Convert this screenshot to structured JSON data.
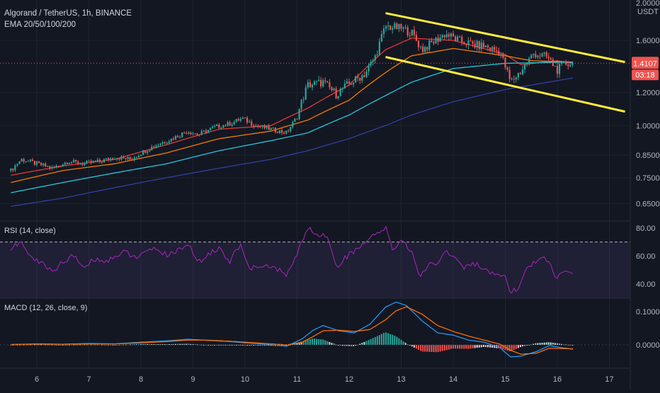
{
  "header": {
    "symbol": "Algorand / TetherUS, 1h, BINANCE",
    "indicator": "EMA 20/50/100/200"
  },
  "price_axis": {
    "currency": "USDT",
    "top_label": "2.0000",
    "current_price": "1.4107",
    "countdown": "03:18"
  },
  "colors": {
    "background": "#131722",
    "up": "#26a69a",
    "down": "#ef5350",
    "trend": "#ffeb3b",
    "ema20": "#e53935",
    "ema50": "#f57c00",
    "ema100": "#26c6da",
    "ema200": "#303f9f",
    "rsi": "#9c27b0",
    "macd": "#2196f3",
    "signal": "#ff6d00"
  },
  "chart_data": [
    {
      "type": "candlestick",
      "title": "Algorand / TetherUS, 1h, BINANCE",
      "x_ticks": [
        "6",
        "7",
        "8",
        "9",
        "10",
        "11",
        "12",
        "13",
        "14",
        "15",
        "16",
        "17"
      ],
      "y_ticks": [
        "0.6500",
        "0.7500",
        "0.8500",
        "1.0000",
        "1.2000",
        "1.6000"
      ],
      "y_scale": "log",
      "ylim": [
        0.6,
        2.0
      ],
      "close_path": [
        [
          5.5,
          0.78
        ],
        [
          5.7,
          0.83
        ],
        [
          6.0,
          0.81
        ],
        [
          6.3,
          0.79
        ],
        [
          6.6,
          0.82
        ],
        [
          6.9,
          0.81
        ],
        [
          7.2,
          0.82
        ],
        [
          7.5,
          0.84
        ],
        [
          7.8,
          0.83
        ],
        [
          8.0,
          0.86
        ],
        [
          8.3,
          0.9
        ],
        [
          8.6,
          0.93
        ],
        [
          8.9,
          0.97
        ],
        [
          9.1,
          0.95
        ],
        [
          9.4,
          0.99
        ],
        [
          9.7,
          1.01
        ],
        [
          9.95,
          1.04
        ],
        [
          10.2,
          1.0
        ],
        [
          10.5,
          0.98
        ],
        [
          10.8,
          0.96
        ],
        [
          11.0,
          1.05
        ],
        [
          11.2,
          1.25
        ],
        [
          11.5,
          1.27
        ],
        [
          11.75,
          1.19
        ],
        [
          12.0,
          1.26
        ],
        [
          12.3,
          1.33
        ],
        [
          12.5,
          1.46
        ],
        [
          12.7,
          1.73
        ],
        [
          13.0,
          1.71
        ],
        [
          13.2,
          1.67
        ],
        [
          13.4,
          1.52
        ],
        [
          13.6,
          1.58
        ],
        [
          13.85,
          1.66
        ],
        [
          14.1,
          1.6
        ],
        [
          14.4,
          1.56
        ],
        [
          14.6,
          1.55
        ],
        [
          14.9,
          1.5
        ],
        [
          15.1,
          1.27
        ],
        [
          15.3,
          1.35
        ],
        [
          15.55,
          1.49
        ],
        [
          15.8,
          1.46
        ],
        [
          16.0,
          1.36
        ],
        [
          16.15,
          1.41
        ],
        [
          16.3,
          1.41
        ]
      ],
      "series": [
        {
          "name": "EMA 20",
          "values": [
            [
              5.5,
              0.76
            ],
            [
              6.5,
              0.8
            ],
            [
              7.5,
              0.83
            ],
            [
              8.5,
              0.9
            ],
            [
              9.5,
              0.98
            ],
            [
              10.5,
              1.0
            ],
            [
              11.2,
              1.1
            ],
            [
              12.0,
              1.25
            ],
            [
              12.7,
              1.52
            ],
            [
              13.2,
              1.62
            ],
            [
              14.0,
              1.6
            ],
            [
              15.0,
              1.48
            ],
            [
              15.3,
              1.4
            ],
            [
              16.0,
              1.43
            ],
            [
              16.3,
              1.41
            ]
          ]
        },
        {
          "name": "EMA 50",
          "values": [
            [
              5.5,
              0.73
            ],
            [
              6.5,
              0.78
            ],
            [
              7.5,
              0.81
            ],
            [
              8.5,
              0.86
            ],
            [
              9.5,
              0.93
            ],
            [
              10.5,
              0.97
            ],
            [
              11.2,
              1.03
            ],
            [
              12.0,
              1.15
            ],
            [
              12.7,
              1.34
            ],
            [
              13.2,
              1.47
            ],
            [
              14.0,
              1.53
            ],
            [
              15.0,
              1.47
            ],
            [
              15.5,
              1.43
            ],
            [
              16.3,
              1.42
            ]
          ]
        },
        {
          "name": "EMA 100",
          "values": [
            [
              5.5,
              0.69
            ],
            [
              6.5,
              0.73
            ],
            [
              7.5,
              0.77
            ],
            [
              8.5,
              0.81
            ],
            [
              9.5,
              0.87
            ],
            [
              10.5,
              0.92
            ],
            [
              11.2,
              0.96
            ],
            [
              12.0,
              1.06
            ],
            [
              12.7,
              1.18
            ],
            [
              13.2,
              1.27
            ],
            [
              14.0,
              1.37
            ],
            [
              15.0,
              1.41
            ],
            [
              16.3,
              1.42
            ]
          ]
        },
        {
          "name": "EMA 200",
          "values": [
            [
              5.5,
              0.64
            ],
            [
              6.5,
              0.67
            ],
            [
              7.5,
              0.71
            ],
            [
              8.5,
              0.75
            ],
            [
              9.5,
              0.79
            ],
            [
              10.5,
              0.83
            ],
            [
              11.2,
              0.87
            ],
            [
              12.0,
              0.93
            ],
            [
              12.7,
              1.0
            ],
            [
              13.2,
              1.06
            ],
            [
              14.0,
              1.14
            ],
            [
              15.0,
              1.22
            ],
            [
              16.3,
              1.3
            ]
          ]
        }
      ],
      "trend_lines": [
        [
          [
            12.7,
            1.86
          ],
          [
            17.3,
            1.42
          ]
        ],
        [
          [
            12.7,
            1.46
          ],
          [
            17.3,
            1.08
          ]
        ]
      ],
      "last_price": 1.4107
    },
    {
      "type": "line",
      "title": "RSI (14, close)",
      "y_ticks": [
        "40.00",
        "60.00",
        "80.00"
      ],
      "ylim": [
        30,
        85
      ],
      "bands": [
        70,
        30
      ],
      "series": [
        {
          "name": "RSI",
          "values": [
            [
              5.5,
              65
            ],
            [
              5.7,
              70
            ],
            [
              5.9,
              58
            ],
            [
              6.1,
              55
            ],
            [
              6.3,
              49
            ],
            [
              6.5,
              56
            ],
            [
              6.7,
              60
            ],
            [
              6.9,
              52
            ],
            [
              7.1,
              58
            ],
            [
              7.3,
              56
            ],
            [
              7.5,
              60
            ],
            [
              7.7,
              63
            ],
            [
              7.9,
              59
            ],
            [
              8.1,
              62
            ],
            [
              8.3,
              66
            ],
            [
              8.5,
              60
            ],
            [
              8.7,
              64
            ],
            [
              8.9,
              69
            ],
            [
              9.1,
              55
            ],
            [
              9.3,
              62
            ],
            [
              9.5,
              65
            ],
            [
              9.7,
              56
            ],
            [
              9.9,
              68
            ],
            [
              10.1,
              50
            ],
            [
              10.3,
              54
            ],
            [
              10.5,
              52
            ],
            [
              10.7,
              49
            ],
            [
              10.8,
              46
            ],
            [
              10.95,
              57
            ],
            [
              11.1,
              71
            ],
            [
              11.2,
              80
            ],
            [
              11.4,
              75
            ],
            [
              11.6,
              74
            ],
            [
              11.75,
              52
            ],
            [
              11.9,
              58
            ],
            [
              12.1,
              64
            ],
            [
              12.3,
              69
            ],
            [
              12.5,
              75
            ],
            [
              12.7,
              80
            ],
            [
              12.85,
              64
            ],
            [
              13.0,
              72
            ],
            [
              13.2,
              63
            ],
            [
              13.35,
              45
            ],
            [
              13.5,
              53
            ],
            [
              13.7,
              55
            ],
            [
              13.85,
              64
            ],
            [
              14.0,
              60
            ],
            [
              14.2,
              52
            ],
            [
              14.4,
              55
            ],
            [
              14.6,
              50
            ],
            [
              14.8,
              46
            ],
            [
              15.0,
              44
            ],
            [
              15.1,
              34
            ],
            [
              15.25,
              37
            ],
            [
              15.4,
              50
            ],
            [
              15.6,
              57
            ],
            [
              15.75,
              60
            ],
            [
              15.9,
              51
            ],
            [
              16.0,
              43
            ],
            [
              16.1,
              49
            ],
            [
              16.2,
              47
            ],
            [
              16.3,
              49
            ]
          ]
        }
      ]
    },
    {
      "type": "bar",
      "title": "MACD (12, 26, close, 9)",
      "y_ticks": [
        "0.0000",
        "0.1000"
      ],
      "ylim": [
        -0.07,
        0.14
      ],
      "series": [
        {
          "name": "MACD",
          "values": [
            [
              5.5,
              0.001
            ],
            [
              6.0,
              0.003
            ],
            [
              6.5,
              0.002
            ],
            [
              7.0,
              0.004
            ],
            [
              7.5,
              0.003
            ],
            [
              8.0,
              0.008
            ],
            [
              8.5,
              0.012
            ],
            [
              8.9,
              0.017
            ],
            [
              9.3,
              0.013
            ],
            [
              9.7,
              0.01
            ],
            [
              10.0,
              0.006
            ],
            [
              10.4,
              0.002
            ],
            [
              10.8,
              -0.004
            ],
            [
              11.1,
              0.018
            ],
            [
              11.3,
              0.043
            ],
            [
              11.5,
              0.058
            ],
            [
              11.8,
              0.042
            ],
            [
              12.1,
              0.036
            ],
            [
              12.4,
              0.062
            ],
            [
              12.7,
              0.113
            ],
            [
              12.9,
              0.128
            ],
            [
              13.1,
              0.118
            ],
            [
              13.4,
              0.072
            ],
            [
              13.7,
              0.036
            ],
            [
              14.0,
              0.029
            ],
            [
              14.3,
              0.014
            ],
            [
              14.6,
              0.008
            ],
            [
              14.9,
              -0.009
            ],
            [
              15.1,
              -0.036
            ],
            [
              15.3,
              -0.034
            ],
            [
              15.6,
              -0.02
            ],
            [
              15.85,
              -0.002
            ],
            [
              16.1,
              -0.009
            ],
            [
              16.3,
              -0.013
            ]
          ]
        },
        {
          "name": "Signal",
          "values": [
            [
              5.5,
              0.001
            ],
            [
              6.0,
              0.002
            ],
            [
              6.5,
              0.002
            ],
            [
              7.0,
              0.003
            ],
            [
              7.5,
              0.003
            ],
            [
              8.0,
              0.006
            ],
            [
              8.5,
              0.01
            ],
            [
              8.9,
              0.014
            ],
            [
              9.3,
              0.014
            ],
            [
              9.7,
              0.011
            ],
            [
              10.0,
              0.008
            ],
            [
              10.4,
              0.004
            ],
            [
              10.8,
              0.0
            ],
            [
              11.1,
              0.008
            ],
            [
              11.3,
              0.024
            ],
            [
              11.5,
              0.042
            ],
            [
              11.8,
              0.044
            ],
            [
              12.1,
              0.04
            ],
            [
              12.4,
              0.046
            ],
            [
              12.7,
              0.075
            ],
            [
              12.9,
              0.102
            ],
            [
              13.1,
              0.114
            ],
            [
              13.4,
              0.092
            ],
            [
              13.7,
              0.058
            ],
            [
              14.0,
              0.04
            ],
            [
              14.3,
              0.026
            ],
            [
              14.6,
              0.014
            ],
            [
              14.9,
              0.002
            ],
            [
              15.1,
              -0.016
            ],
            [
              15.3,
              -0.028
            ],
            [
              15.6,
              -0.025
            ],
            [
              15.85,
              -0.01
            ],
            [
              16.1,
              -0.011
            ],
            [
              16.3,
              -0.012
            ]
          ]
        }
      ]
    }
  ]
}
